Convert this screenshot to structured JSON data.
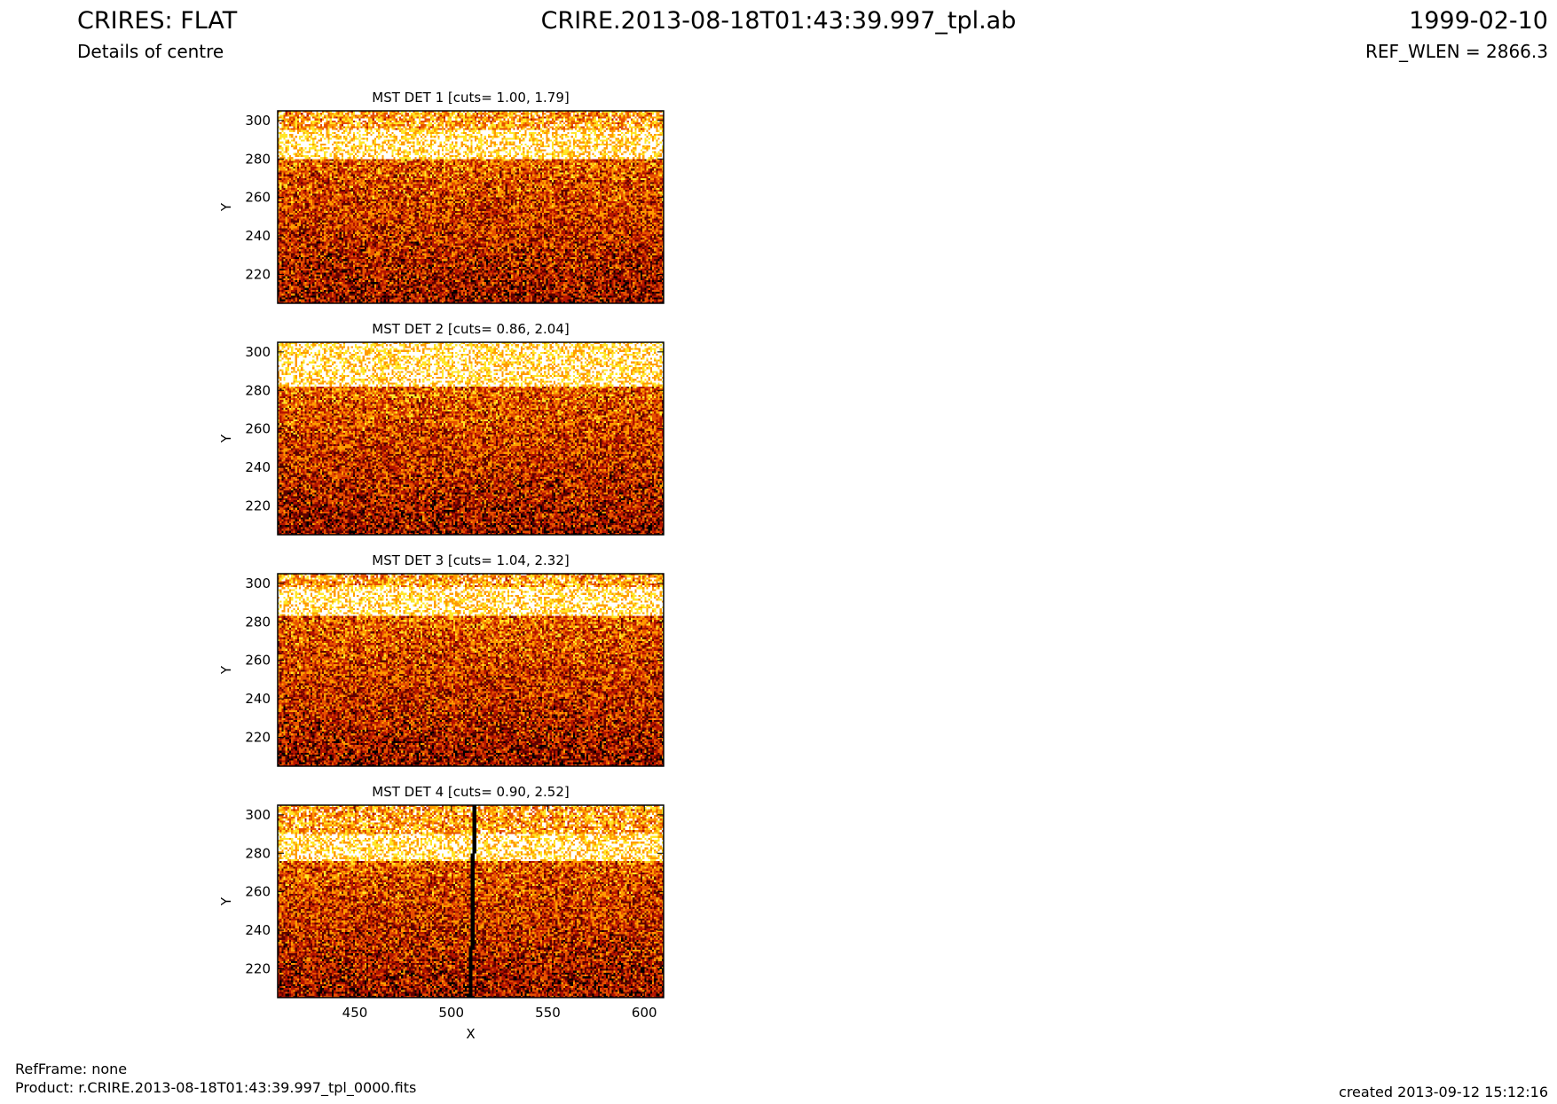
{
  "header": {
    "title_left": "CRIRES: FLAT",
    "subtitle_left": "Details of centre",
    "title_center": "CRIRE.2013-08-18T01:43:39.997_tpl.ab",
    "title_right": "1999-02-10",
    "subtitle_right": "REF_WLEN = 2866.3"
  },
  "footer": {
    "refframe": "RefFrame: none",
    "product": "Product: r.CRIRE.2013-08-18T01:43:39.997_tpl_0000.fits",
    "created": "created 2013-09-12 15:12:16"
  },
  "colormap": [
    "#000000",
    "#5c0000",
    "#b41400",
    "#e65000",
    "#ff9b00",
    "#ffe628",
    "#ffffff"
  ],
  "chart_data": [
    {
      "type": "heatmap",
      "title": "MST DET 1 [cuts= 1.00, 1.79]",
      "xlabel": "",
      "ylabel": "Y",
      "xlim": [
        410,
        610
      ],
      "ylim": [
        205,
        305
      ],
      "xticks": [],
      "yticks": [
        220,
        240,
        260,
        280,
        300
      ],
      "bright_band": [
        280,
        295
      ],
      "dark_line": null
    },
    {
      "type": "heatmap",
      "title": "MST DET 2 [cuts= 0.86, 2.04]",
      "xlabel": "",
      "ylabel": "Y",
      "xlim": [
        410,
        610
      ],
      "ylim": [
        205,
        305
      ],
      "xticks": [],
      "yticks": [
        220,
        240,
        260,
        280,
        300
      ],
      "bright_band": [
        282,
        305
      ],
      "dark_line": null
    },
    {
      "type": "heatmap",
      "title": "MST DET 3 [cuts= 1.04, 2.32]",
      "xlabel": "",
      "ylabel": "Y",
      "xlim": [
        410,
        610
      ],
      "ylim": [
        205,
        305
      ],
      "xticks": [],
      "yticks": [
        220,
        240,
        260,
        280,
        300
      ],
      "bright_band": [
        283,
        298
      ],
      "dark_line": null
    },
    {
      "type": "heatmap",
      "title": "MST DET 4 [cuts= 0.90, 2.52]",
      "xlabel": "X",
      "ylabel": "Y",
      "xlim": [
        410,
        610
      ],
      "ylim": [
        205,
        305
      ],
      "xticks": [
        450,
        500,
        550,
        600
      ],
      "yticks": [
        220,
        240,
        260,
        280,
        300
      ],
      "bright_band": [
        276,
        290
      ],
      "dark_line": [
        510,
        514
      ]
    }
  ]
}
